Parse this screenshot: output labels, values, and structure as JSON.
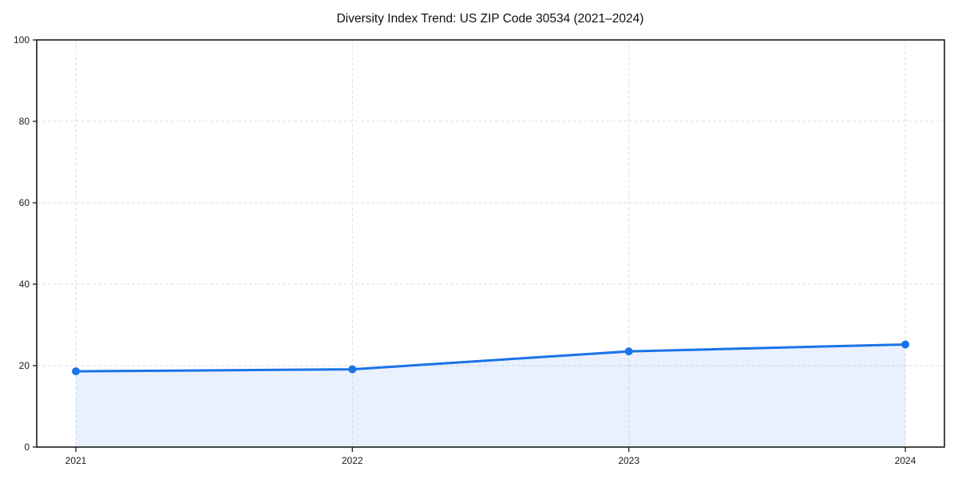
{
  "page": {
    "background": "#ffffff"
  },
  "chart_data": {
    "type": "line",
    "title": "Diversity Index Trend: US ZIP Code 30534 (2021–2024)",
    "categories": [
      "2021",
      "2022",
      "2023",
      "2024"
    ],
    "values": [
      18.6,
      19.1,
      23.5,
      25.2
    ],
    "xlabel": "",
    "ylabel": "",
    "ylim": [
      0,
      100
    ],
    "yticks": [
      0,
      20,
      40,
      60,
      80,
      100
    ],
    "grid": "dashed",
    "legend": "none",
    "area_fill": true,
    "colors": {
      "line": "#1a73e8",
      "fill_opacity": 0.1,
      "grid": "#dedede",
      "spine": "#1c1c1c",
      "tick_text": "#1a1a1a",
      "title_text": "#111111"
    }
  }
}
